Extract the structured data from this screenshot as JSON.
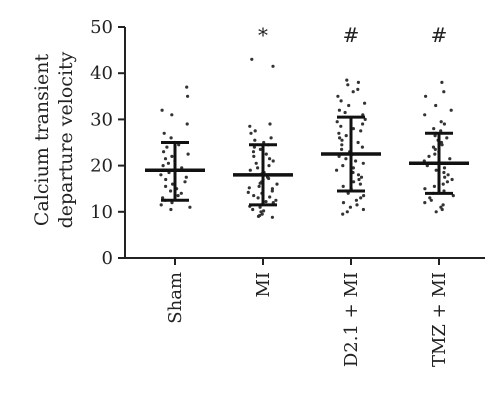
{
  "chart_data": {
    "type": "scatter",
    "title": "",
    "ylabel_lines": [
      "Calcium transient",
      "departure velocity"
    ],
    "xlabel": "",
    "ylim": [
      0,
      50
    ],
    "yticks": [
      0,
      10,
      20,
      30,
      40,
      50
    ],
    "grid": false,
    "legend": "none",
    "categories": [
      "Sham",
      "MI",
      "D2.1 + MI",
      "TMZ + MI"
    ],
    "groups": [
      {
        "category": "Sham",
        "mean": 19,
        "sd_upper": 25,
        "sd_lower": 12.5,
        "significance": "",
        "points": [
          37,
          35,
          32,
          31,
          29,
          27,
          26,
          25,
          24.5,
          24,
          23,
          22.5,
          22,
          21.5,
          21,
          20.5,
          20,
          19.5,
          19,
          18.5,
          18,
          17.5,
          17,
          16.5,
          16,
          15.5,
          15,
          14.5,
          14,
          13.5,
          13,
          12.5,
          12,
          11.5,
          11,
          10.5
        ]
      },
      {
        "category": "MI",
        "mean": 18,
        "sd_upper": 24.5,
        "sd_lower": 11.5,
        "significance": "*",
        "points": [
          43,
          41.5,
          29,
          28.5,
          27.5,
          27,
          26,
          25.5,
          25,
          24.5,
          24,
          23.5,
          23,
          22.5,
          22,
          21.5,
          21,
          20.5,
          20,
          19.5,
          19,
          18.5,
          18.2,
          18,
          17.5,
          17.2,
          17,
          16.5,
          16.2,
          16,
          15.5,
          15.2,
          15,
          14.5,
          14.2,
          14,
          13.5,
          13.2,
          13,
          12.5,
          12.2,
          12,
          11.5,
          11.2,
          11,
          10.5,
          10.2,
          10,
          9.5,
          9.2,
          9,
          8.8
        ]
      },
      {
        "category": "D2.1 + MI",
        "mean": 22.5,
        "sd_upper": 30.5,
        "sd_lower": 14.5,
        "significance": "#",
        "points": [
          38.5,
          38,
          37.5,
          36.5,
          36,
          35,
          34,
          33.5,
          33,
          32,
          31.5,
          31,
          30,
          29.5,
          29,
          28.5,
          28,
          27.5,
          27,
          26.5,
          26,
          25.5,
          25,
          24.5,
          24,
          23.5,
          23,
          22.5,
          22,
          21.5,
          21,
          20.5,
          20,
          19.5,
          19,
          18.5,
          18,
          17.5,
          17,
          16.5,
          16,
          15.5,
          15,
          14.5,
          14,
          13.5,
          13,
          12.5,
          12,
          11.5,
          11,
          10.5,
          10,
          9.5
        ]
      },
      {
        "category": "TMZ + MI",
        "mean": 20.5,
        "sd_upper": 27,
        "sd_lower": 14,
        "significance": "#",
        "points": [
          38,
          36,
          35,
          33,
          32,
          31,
          29.5,
          29,
          28,
          27.5,
          27,
          26.5,
          26,
          25.5,
          25,
          24.5,
          24,
          23.5,
          23,
          22.5,
          22,
          21.5,
          21,
          20.5,
          20,
          19.5,
          19,
          18.5,
          18,
          17.5,
          17,
          16.5,
          16,
          15.5,
          15,
          14.5,
          14,
          13.5,
          13,
          12.5,
          12,
          11.5,
          11,
          10.5,
          10
        ]
      }
    ]
  }
}
